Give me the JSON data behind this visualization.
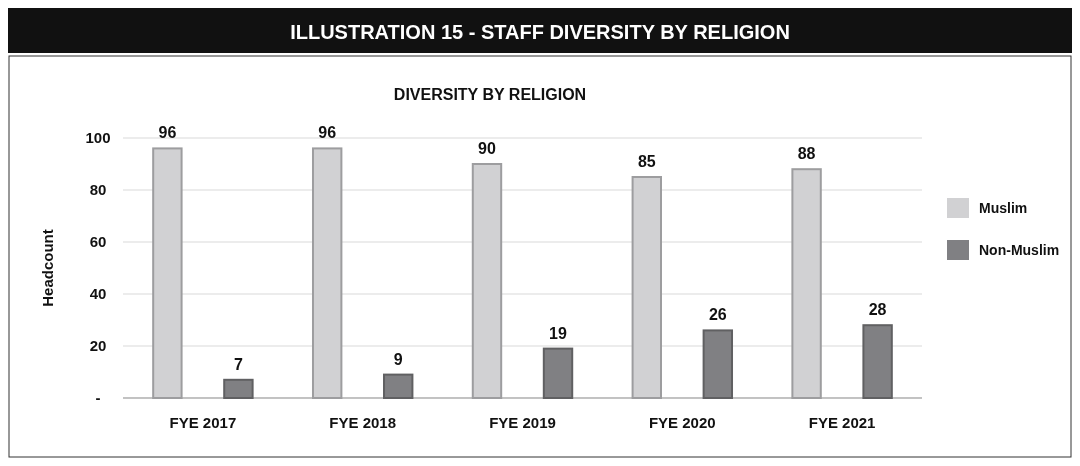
{
  "chart_data": {
    "type": "bar",
    "title": "ILLUSTRATION 15 - STAFF DIVERSITY BY RELIGION",
    "subtitle": "DIVERSITY BY RELIGION",
    "ylabel": "Headcount",
    "categories": [
      "FYE 2017",
      "FYE 2018",
      "FYE 2019",
      "FYE 2020",
      "FYE 2021"
    ],
    "series": [
      {
        "name": "Muslim",
        "color": "#d1d1d3",
        "values": [
          96,
          96,
          90,
          85,
          88
        ]
      },
      {
        "name": "Non-Muslim",
        "color": "#808083",
        "values": [
          7,
          9,
          19,
          26,
          28
        ]
      }
    ],
    "ylim": [
      0,
      100
    ],
    "yticks": [
      {
        "value": 0,
        "label": "-"
      },
      20,
      40,
      60,
      80,
      100
    ],
    "grid": "y",
    "legend": "right",
    "data_labels": true
  }
}
